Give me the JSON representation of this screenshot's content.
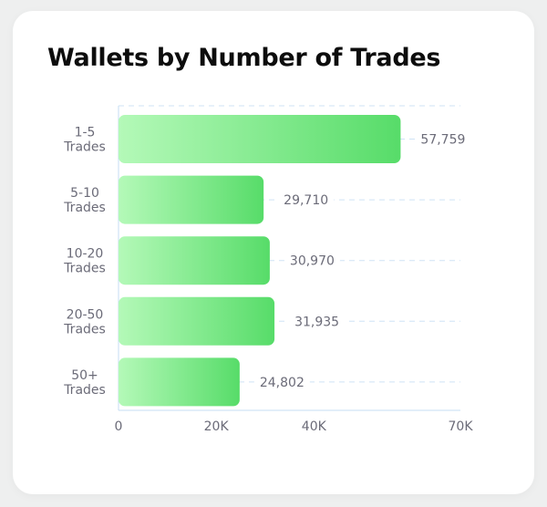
{
  "chart_data": {
    "type": "bar",
    "orientation": "horizontal",
    "title": "Wallets by Number of Trades",
    "categories": [
      [
        "1-5",
        "Trades"
      ],
      [
        "5-10",
        "Trades"
      ],
      [
        "10-20",
        "Trades"
      ],
      [
        "20-50",
        "Trades"
      ],
      [
        "50+",
        "Trades"
      ]
    ],
    "values": [
      57759,
      29710,
      30970,
      31935,
      24802
    ],
    "value_labels": [
      "57,759",
      "29,710",
      "30,970",
      "31,935",
      "24,802"
    ],
    "xlim": [
      0,
      70000
    ],
    "x_ticks": [
      0,
      20000,
      40000,
      70000
    ],
    "x_tick_labels": [
      "0",
      "20K",
      "40K",
      "70K"
    ],
    "xlabel": "",
    "ylabel": "",
    "grid": true,
    "legend": "none",
    "colors": {
      "bar_start": "#b4f9b8",
      "bar_end": "#57dc69",
      "grid": "#cfe3f5",
      "axis": "#c5ddf3",
      "label": "#6b6b78",
      "title": "#0d0d0d"
    }
  }
}
